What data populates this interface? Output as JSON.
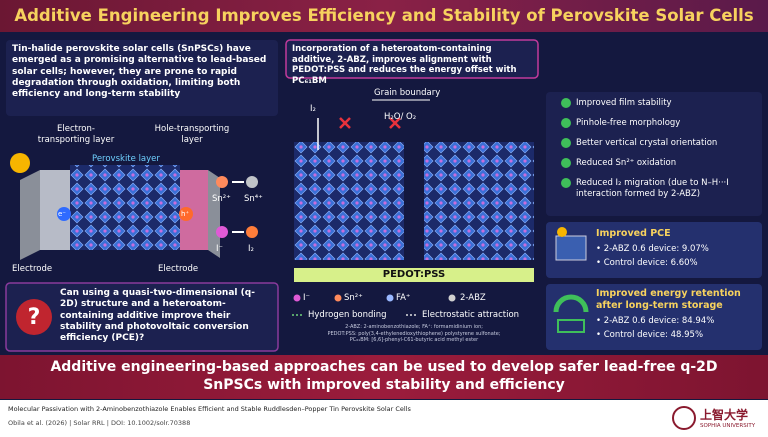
{
  "title": "Additive Engineering Improves Efficiency and Stability of Perovskite Solar Cells",
  "left": {
    "intro": "Tin-halide perovskite solar cells (SnPSCs) have emerged as a promising alternative to lead-based solar cells; however, they are prone to rapid degradation through oxidation, limiting both efficiency and long-term stability",
    "etl_label": "Electron-transporting layer",
    "htl_label": "Hole-transporting layer",
    "perovskite_label": "Perovskite layer",
    "electrode_left": "Electrode",
    "electrode_right": "Electrode",
    "electron": "e⁻",
    "hole": "h⁺",
    "ions": [
      "Sn²⁺",
      "Sn⁴⁺",
      "I⁻",
      "I₂"
    ],
    "question": "Can using a quasi-two-dimensional (q-2D) structure and a heteroatom-containing additive improve their stability and photovoltaic conversion efficiency (PCE)?"
  },
  "center": {
    "heading": "Incorporation of a heteroatom-containing additive, 2-ABZ, improves alignment with PEDOT:PSS and reduces the energy offset with PC₆₁BM",
    "grain_boundary": "Grain boundary",
    "h2o": "H₂O/ O₂",
    "i2": "I₂",
    "substrate": "PEDOT:PSS",
    "legend": [
      "I⁻",
      "Sn²⁺",
      "FA⁺",
      "2-ABZ",
      "Hydrogen bonding",
      "Electrostatic attraction"
    ],
    "footnotes": [
      "2-ABZ: 2-aminobenzothiazole; FA⁺: formamidinium ion;",
      "PEDOT:PSS: poly(3,4-ethylenedioxythiophene) polystyrene sulfonate;",
      "PC₆₁BM: [6,6]-phenyl-C61-butyric acid methyl ester"
    ]
  },
  "right": {
    "benefits": [
      "Improved film stability",
      "Pinhole-free morphology",
      "Better vertical crystal orientation",
      "Reduced Sn²⁺ oxidation",
      "Reduced I₂ migration (due to N–H···I interaction formed by 2-ABZ)"
    ],
    "pce_title": "Improved PCE",
    "pce_lines": [
      "• 2-ABZ 0.6 device: 9.07%",
      "• Control device: 6.60%"
    ],
    "retention_title": "Improved energy retention after long-term storage",
    "retention_lines": [
      "• 2-ABZ 0.6 device: 84.94%",
      "• Control device: 48.95%"
    ]
  },
  "conclusion": "Additive engineering-based approaches can be used to develop safer lead-free q-2D SnPSCs with improved stability and efficiency",
  "footer": {
    "paper_title": "Molecular Passivation with 2-Aminobenzothiazole Enables Efficient and Stable Ruddlesden–Popper Tin Perovskite Solar Cells",
    "citation": "Obila et al. (2026) | Solar RRL | DOI: 10.1002/solr.70388",
    "university": "上智大学",
    "university_en": "SOPHIA UNIVERSITY"
  }
}
